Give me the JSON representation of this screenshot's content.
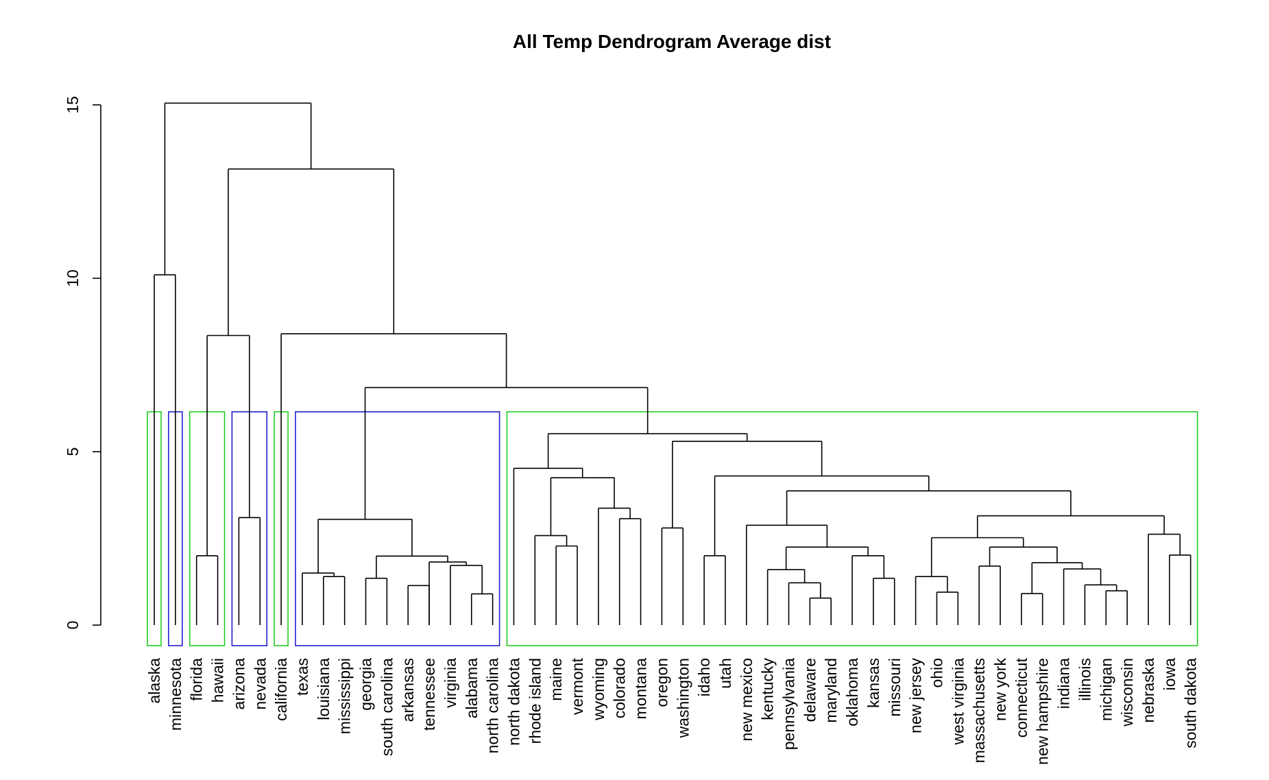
{
  "chart_data": {
    "type": "dendrogram",
    "title": "All Temp Dendrogram Average dist",
    "xlabel": "",
    "ylabel": "",
    "ylim": [
      0,
      15
    ],
    "yticks": [
      0,
      5,
      10,
      15
    ],
    "grid": false,
    "leaves": [
      "alaska",
      "minnesota",
      "florida",
      "hawaii",
      "arizona",
      "nevada",
      "california",
      "texas",
      "louisiana",
      "mississippi",
      "georgia",
      "south carolina",
      "arkansas",
      "tennessee",
      "virginia",
      "alabama",
      "north carolina",
      "north dakota",
      "rhode island",
      "maine",
      "vermont",
      "wyoming",
      "colorado",
      "montana",
      "oregon",
      "washington",
      "idaho",
      "utah",
      "new mexico",
      "kentucky",
      "pennsylvania",
      "delaware",
      "maryland",
      "oklahoma",
      "kansas",
      "missouri",
      "new jersey",
      "ohio",
      "west virginia",
      "massachusetts",
      "new york",
      "connecticut",
      "new hampshire",
      "indiana",
      "illinois",
      "michigan",
      "wisconsin",
      "nebraska",
      "iowa",
      "south dakota"
    ],
    "merges": [
      {
        "a": "L31",
        "b": "L32",
        "h": 0.78
      },
      {
        "a": "L15",
        "b": "L16",
        "h": 0.9
      },
      {
        "a": "L41",
        "b": "L42",
        "h": 0.91
      },
      {
        "a": "L37",
        "b": "L38",
        "h": 0.95
      },
      {
        "a": "L45",
        "b": "L46",
        "h": 0.99
      },
      {
        "a": "L12",
        "b": "L13",
        "h": 1.14
      },
      {
        "a": "L44",
        "b": "m5",
        "h": 1.16
      },
      {
        "a": "L30",
        "b": "m1",
        "h": 1.22
      },
      {
        "a": "L10",
        "b": "L11",
        "h": 1.35
      },
      {
        "a": "L34",
        "b": "L35",
        "h": 1.35
      },
      {
        "a": "L8",
        "b": "L9",
        "h": 1.4
      },
      {
        "a": "L36",
        "b": "m4",
        "h": 1.4
      },
      {
        "a": "L7",
        "b": "m11",
        "h": 1.5
      },
      {
        "a": "L29",
        "b": "m8",
        "h": 1.6
      },
      {
        "a": "L43",
        "b": "m7",
        "h": 1.62
      },
      {
        "a": "L39",
        "b": "L40",
        "h": 1.7
      },
      {
        "a": "L14",
        "b": "m2",
        "h": 1.72
      },
      {
        "a": "L40",
        "b": "L40",
        "h": 0,
        "skip": true
      },
      {
        "a": "m3",
        "b": "m15",
        "h": 1.8
      },
      {
        "a": "L13",
        "b": "m17",
        "h": 1.82
      },
      {
        "a": "m6",
        "b": "m17",
        "h": 1.82,
        "skip": true
      },
      {
        "a": "m9",
        "b": "m20",
        "h": 1.99
      },
      {
        "a": "L2",
        "b": "L3",
        "h": 2.0
      },
      {
        "a": "L26",
        "b": "L27",
        "h": 2.0
      },
      {
        "a": "L33",
        "b": "m10",
        "h": 2.0
      },
      {
        "a": "L48",
        "b": "L49",
        "h": 2.02
      },
      {
        "a": "m14",
        "b": "m25",
        "h": 2.25
      },
      {
        "a": "L19",
        "b": "L20",
        "h": 2.28
      },
      {
        "a": "m16",
        "b": "m19",
        "h": 2.25
      },
      {
        "a": "m12",
        "b": "m29",
        "h": 2.52
      },
      {
        "a": "L18",
        "b": "m28",
        "h": 2.58
      },
      {
        "a": "L47",
        "b": "m26",
        "h": 2.62
      },
      {
        "a": "L24",
        "b": "L25",
        "h": 2.8
      },
      {
        "a": "L28",
        "b": "m27",
        "h": 2.88
      },
      {
        "a": "m13",
        "b": "m22",
        "h": 3.05
      },
      {
        "a": "L22",
        "b": "L23",
        "h": 3.07
      },
      {
        "a": "L4",
        "b": "L5",
        "h": 3.1
      },
      {
        "a": "m30",
        "b": "m32",
        "h": 3.15
      },
      {
        "a": "L21",
        "b": "m36",
        "h": 3.37
      },
      {
        "a": "m34",
        "b": "m38",
        "h": 3.87
      },
      {
        "a": "m31",
        "b": "m39",
        "h": 4.25
      },
      {
        "a": "m24",
        "b": "m40",
        "h": 4.3
      },
      {
        "a": "L17",
        "b": "m41",
        "h": 4.52
      },
      {
        "a": "m33",
        "b": "m42",
        "h": 5.3
      },
      {
        "a": "m43",
        "b": "m44",
        "h": 5.52
      },
      {
        "a": "m35",
        "b": "m45",
        "h": 6.85
      },
      {
        "a": "L6",
        "b": "m46",
        "h": 8.4
      },
      {
        "a": "L0",
        "b": "L1",
        "h": 10.1
      },
      {
        "a": "m23",
        "b": "m37",
        "h": 8.35
      },
      {
        "a": "m49",
        "b": "m47",
        "h": 13.15
      },
      {
        "a": "m48",
        "b": "m50",
        "h": 15.05
      }
    ],
    "cut_height": 6.15,
    "clusters": [
      {
        "first": 0,
        "last": 0,
        "color": "#22cc22"
      },
      {
        "first": 1,
        "last": 1,
        "color": "#1f1fd0"
      },
      {
        "first": 2,
        "last": 3,
        "color": "#22cc22"
      },
      {
        "first": 4,
        "last": 5,
        "color": "#1f1fd0"
      },
      {
        "first": 6,
        "last": 6,
        "color": "#22cc22"
      },
      {
        "first": 7,
        "last": 16,
        "color": "#1f1fd0"
      },
      {
        "first": 17,
        "last": 49,
        "color": "#22cc22"
      }
    ]
  }
}
